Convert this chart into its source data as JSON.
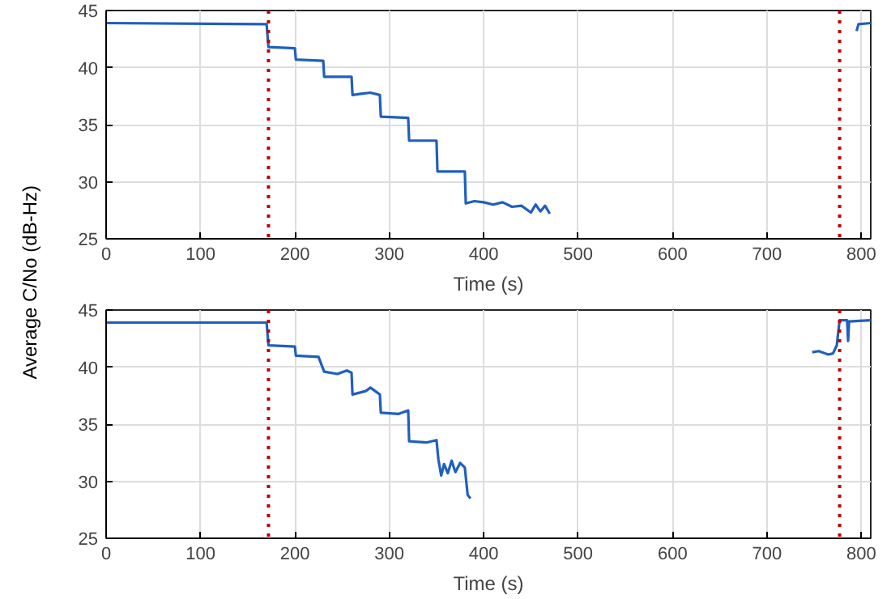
{
  "chart_data": [
    {
      "type": "line",
      "xlabel": "Time (s)",
      "ylabel": "Average C/No (dB-Hz)",
      "xlim": [
        0,
        810
      ],
      "ylim": [
        25,
        45
      ],
      "xticks": [
        0,
        100,
        200,
        300,
        400,
        500,
        600,
        700,
        800
      ],
      "yticks": [
        25,
        30,
        35,
        40,
        45
      ],
      "grid": true,
      "marker": "none",
      "line_style": "solid",
      "series": [
        {
          "color": "#1f5fbf",
          "x": [
            0,
            170,
            172,
            200,
            201,
            230,
            231,
            260,
            261,
            270,
            280,
            290,
            291,
            320,
            321,
            350,
            351,
            380,
            381,
            390,
            400,
            410,
            420,
            430,
            440,
            450,
            455,
            460,
            465,
            470,
            600,
            795,
            797,
            810
          ],
          "values": [
            43.9,
            43.8,
            41.8,
            41.7,
            40.7,
            40.6,
            39.2,
            39.2,
            37.6,
            37.7,
            37.8,
            37.6,
            35.7,
            35.6,
            33.6,
            33.6,
            30.9,
            30.9,
            28.1,
            28.3,
            28.2,
            28.0,
            28.2,
            27.8,
            27.9,
            27.3,
            28.0,
            27.4,
            27.9,
            27.2,
            null,
            43.2,
            43.8,
            43.9
          ]
        }
      ],
      "ref_lines": [
        {
          "axis": "x",
          "value": 172,
          "color": "#c00000",
          "line_style": "dotted"
        },
        {
          "axis": "x",
          "value": 777,
          "color": "#c00000",
          "line_style": "dotted"
        }
      ]
    },
    {
      "type": "line",
      "xlabel": "Time (s)",
      "xlim": [
        0,
        810
      ],
      "ylim": [
        25,
        45
      ],
      "xticks": [
        0,
        100,
        200,
        300,
        400,
        500,
        600,
        700,
        800
      ],
      "yticks": [
        25,
        30,
        35,
        40,
        45
      ],
      "grid": true,
      "marker": "none",
      "line_style": "solid",
      "series": [
        {
          "color": "#1f5fbf",
          "x": [
            0,
            170,
            172,
            200,
            201,
            225,
            231,
            245,
            255,
            260,
            261,
            275,
            280,
            290,
            291,
            310,
            320,
            321,
            340,
            350,
            352,
            355,
            358,
            362,
            366,
            370,
            375,
            380,
            383,
            386,
            600,
            748,
            755,
            765,
            770,
            774,
            777,
            785,
            786,
            787,
            810
          ],
          "values": [
            43.9,
            43.9,
            41.9,
            41.8,
            41.0,
            40.9,
            39.6,
            39.4,
            39.7,
            39.5,
            37.6,
            37.9,
            38.2,
            37.6,
            36.0,
            35.9,
            36.2,
            33.5,
            33.4,
            33.6,
            31.9,
            30.5,
            31.5,
            30.7,
            31.8,
            30.8,
            31.6,
            31.2,
            28.8,
            28.5,
            null,
            41.3,
            41.4,
            41.1,
            41.2,
            41.9,
            44.1,
            44.1,
            42.3,
            44.0,
            44.1
          ]
        }
      ],
      "ref_lines": [
        {
          "axis": "x",
          "value": 172,
          "color": "#c00000",
          "line_style": "dotted"
        },
        {
          "axis": "x",
          "value": 777,
          "color": "#c00000",
          "line_style": "dotted"
        }
      ]
    }
  ]
}
